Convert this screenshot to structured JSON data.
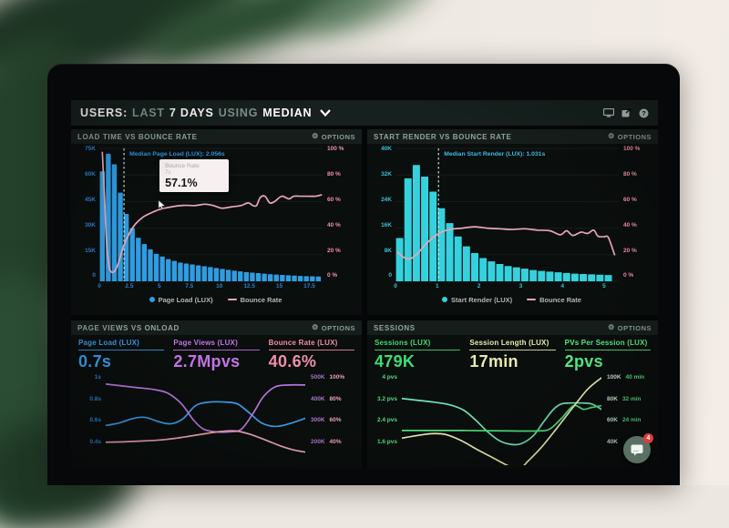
{
  "header": {
    "brand": "USERS:",
    "range_prefix": "LAST",
    "range": "7 DAYS",
    "using": "USING",
    "aggregation": "MEDIAN",
    "icons": [
      "display-icon",
      "share-icon",
      "help-icon"
    ]
  },
  "chat": {
    "badge": "4"
  },
  "colors": {
    "blue": "#2f9de3",
    "cyan": "#35d2de",
    "pink_line": "#e9a6b8",
    "pink_label": "#ef8fa8",
    "purple": "#b873d9",
    "green": "#3fdd74",
    "pale_yellow": "#e9ecad",
    "panel_bg": "#0a0e0d",
    "header_bg": "#17201e"
  },
  "chart_data": [
    {
      "id": "load-time-vs-bounce-rate",
      "type": "histogram-line",
      "title": "LOAD TIME VS BOUNCE RATE",
      "options_label": "OPTIONS",
      "left_ticks": [
        "75K",
        "60K",
        "45K",
        "30K",
        "15K",
        "0"
      ],
      "right_ticks": [
        "100 %",
        "80 %",
        "60 %",
        "40 %",
        "20 %",
        "0 %"
      ],
      "left_color": "#2e7fd0",
      "right_color": "#ef8fa8",
      "ylim_left": [
        0,
        75
      ],
      "ylim_right": [
        0,
        100
      ],
      "xlim": [
        0,
        18.6
      ],
      "x_ticks": [
        0,
        2.5,
        5,
        7.5,
        10,
        12.5,
        15,
        17.5
      ],
      "x_tick_labels": [
        "0",
        "2.5",
        "5",
        "7.5",
        "10",
        "12.5",
        "15",
        "17.5"
      ],
      "bar_series": {
        "name": "Page Load (LUX)",
        "color": "#2f9de3",
        "bin_start": 0,
        "bin_width": 0.5,
        "values": [
          62,
          72,
          66,
          50,
          38,
          30,
          24.5,
          21,
          18,
          15.5,
          14,
          12.5,
          11.5,
          10.5,
          10,
          9.5,
          9,
          8.5,
          8,
          7.5,
          7,
          6.5,
          6,
          5.6,
          5.2,
          4.9,
          4.6,
          4.3,
          4,
          3.8,
          3.6,
          3.4,
          3.2,
          3,
          2.9,
          2.8,
          2.7
        ]
      },
      "line_series": {
        "name": "Bounce Rate",
        "color": "#e9a6b8",
        "points": [
          [
            0.25,
            97
          ],
          [
            0.45,
            60
          ],
          [
            0.6,
            30
          ],
          [
            0.8,
            12
          ],
          [
            1.0,
            7
          ],
          [
            1.3,
            8
          ],
          [
            1.6,
            14
          ],
          [
            2.0,
            26
          ],
          [
            2.5,
            36
          ],
          [
            3.0,
            43
          ],
          [
            3.6,
            48
          ],
          [
            4.2,
            51
          ],
          [
            5.0,
            54
          ],
          [
            6.0,
            56
          ],
          [
            7.0,
            57.1
          ],
          [
            8.0,
            57
          ],
          [
            8.8,
            58
          ],
          [
            9.5,
            57
          ],
          [
            10.2,
            55
          ],
          [
            11.0,
            56
          ],
          [
            11.8,
            57
          ],
          [
            12.4,
            59
          ],
          [
            12.8,
            57
          ],
          [
            13.1,
            57
          ],
          [
            13.4,
            63
          ],
          [
            13.8,
            64
          ],
          [
            14.2,
            59
          ],
          [
            14.6,
            60
          ],
          [
            15.2,
            64
          ],
          [
            15.8,
            62
          ],
          [
            16.2,
            64
          ],
          [
            16.8,
            64
          ],
          [
            17.4,
            64
          ],
          [
            18.0,
            64
          ],
          [
            18.5,
            65
          ]
        ]
      },
      "median_annotation": {
        "label": "Median Page Load (LUX): 2.056s",
        "x": 2.056,
        "color": "#2f94e0"
      },
      "tooltip": {
        "title": "Bounce Rate",
        "subtitle": "7s",
        "value": "57.1%"
      },
      "legend": [
        {
          "label": "Page Load (LUX)",
          "marker": "dot",
          "color": "#2f9de3"
        },
        {
          "label": "Bounce Rate",
          "marker": "line",
          "color": "#e9a6b8"
        }
      ]
    },
    {
      "id": "start-render-vs-bounce-rate",
      "type": "histogram-line",
      "title": "START RENDER VS BOUNCE RATE",
      "options_label": "OPTIONS",
      "left_ticks": [
        "40K",
        "32K",
        "24K",
        "16K",
        "8K",
        "0"
      ],
      "right_ticks": [
        "100 %",
        "80 %",
        "60 %",
        "40 %",
        "20 %",
        "0 %"
      ],
      "left_color": "#36c0cf",
      "right_color": "#ef8fa8",
      "ylim_left": [
        0,
        40
      ],
      "ylim_right": [
        0,
        100
      ],
      "xlim": [
        0,
        5.35
      ],
      "x_ticks": [
        0,
        1,
        2,
        3,
        4,
        5
      ],
      "x_tick_labels": [
        "0",
        "1",
        "2",
        "3",
        "4",
        "5"
      ],
      "bar_series": {
        "name": "Start Render (LUX)",
        "color": "#35d2de",
        "bin_start": 0,
        "bin_width": 0.2,
        "values": [
          13,
          31,
          35,
          31.5,
          27,
          22,
          17.5,
          13.5,
          10.5,
          8.5,
          7,
          6,
          5.2,
          4.6,
          4.2,
          3.8,
          3.4,
          3.1,
          2.9,
          2.7,
          2.5,
          2.3,
          2.2,
          2.1,
          2.0,
          1.9
        ]
      },
      "line_series": {
        "name": "Bounce Rate",
        "color": "#e9a6b8",
        "points": [
          [
            0.05,
            22
          ],
          [
            0.2,
            18
          ],
          [
            0.35,
            17
          ],
          [
            0.5,
            20
          ],
          [
            0.7,
            27
          ],
          [
            0.9,
            33
          ],
          [
            1.1,
            37
          ],
          [
            1.3,
            39
          ],
          [
            1.6,
            40
          ],
          [
            1.9,
            41
          ],
          [
            2.2,
            40
          ],
          [
            2.5,
            39.5
          ],
          [
            2.8,
            39
          ],
          [
            3.1,
            39.5
          ],
          [
            3.4,
            38.5
          ],
          [
            3.7,
            38
          ],
          [
            3.95,
            35
          ],
          [
            4.1,
            38
          ],
          [
            4.25,
            34.5
          ],
          [
            4.45,
            37
          ],
          [
            4.6,
            36
          ],
          [
            4.75,
            38.5
          ],
          [
            4.85,
            34
          ],
          [
            5.0,
            33.5
          ],
          [
            5.1,
            33
          ],
          [
            5.25,
            20
          ]
        ]
      },
      "median_annotation": {
        "label": "Median Start Render (LUX): 1.031s",
        "x": 1.031,
        "color": "#3fb9e6"
      },
      "tooltip": null,
      "legend": [
        {
          "label": "Start Render (LUX)",
          "marker": "dot",
          "color": "#35d2de"
        },
        {
          "label": "Bounce Rate",
          "marker": "line",
          "color": "#e9a6b8"
        }
      ]
    },
    {
      "id": "page-views-vs-onload",
      "type": "line",
      "title": "PAGE VIEWS VS ONLOAD",
      "options_label": "OPTIONS",
      "metrics": [
        {
          "label": "Page Load (LUX)",
          "value": "0.7s",
          "color": "#3b9ce8"
        },
        {
          "label": "Page Views (LUX)",
          "value": "2.7Mpvs",
          "color": "#c473e8"
        },
        {
          "label": "Bounce Rate (LUX)",
          "value": "40.6%",
          "color": "#f08fa8"
        }
      ],
      "left_ticks": [
        "1s",
        "0.8s",
        "0.6s",
        "0.4s"
      ],
      "left_color": "#2e7fd0",
      "right_ticks": [
        [
          "500K",
          "100%"
        ],
        [
          "400K",
          "80%"
        ],
        [
          "300K",
          "60%"
        ],
        [
          "200K",
          "40%"
        ]
      ],
      "right_colors": [
        "#a877c9",
        "#e8a0b4"
      ],
      "series": [
        {
          "name": "Page Load (LUX)",
          "color": "#3b9ce8",
          "points": [
            [
              0,
              0.44
            ],
            [
              0.07,
              0.47
            ],
            [
              0.14,
              0.52
            ],
            [
              0.2,
              0.53
            ],
            [
              0.27,
              0.48
            ],
            [
              0.33,
              0.46
            ],
            [
              0.39,
              0.52
            ],
            [
              0.45,
              0.66
            ],
            [
              0.52,
              0.7
            ],
            [
              0.6,
              0.7
            ],
            [
              0.66,
              0.68
            ],
            [
              0.72,
              0.58
            ],
            [
              0.78,
              0.47
            ],
            [
              0.85,
              0.43
            ],
            [
              0.92,
              0.46
            ],
            [
              1,
              0.52
            ]
          ]
        },
        {
          "name": "Page Views (LUX)",
          "color": "#b873d9",
          "points": [
            [
              0,
              0.9
            ],
            [
              0.08,
              0.88
            ],
            [
              0.16,
              0.86
            ],
            [
              0.24,
              0.84
            ],
            [
              0.31,
              0.8
            ],
            [
              0.38,
              0.68
            ],
            [
              0.44,
              0.5
            ],
            [
              0.49,
              0.4
            ],
            [
              0.55,
              0.37
            ],
            [
              0.62,
              0.37
            ],
            [
              0.68,
              0.4
            ],
            [
              0.74,
              0.58
            ],
            [
              0.79,
              0.76
            ],
            [
              0.85,
              0.87
            ],
            [
              0.92,
              0.89
            ],
            [
              1,
              0.89
            ]
          ]
        },
        {
          "name": "Bounce Rate (LUX)",
          "color": "#e9a0b2",
          "points": [
            [
              0,
              0.255
            ],
            [
              0.1,
              0.26
            ],
            [
              0.2,
              0.27
            ],
            [
              0.3,
              0.285
            ],
            [
              0.4,
              0.315
            ],
            [
              0.5,
              0.35
            ],
            [
              0.58,
              0.375
            ],
            [
              0.65,
              0.38
            ],
            [
              0.72,
              0.345
            ],
            [
              0.8,
              0.28
            ],
            [
              0.88,
              0.21
            ],
            [
              0.94,
              0.17
            ],
            [
              1,
              0.145
            ]
          ]
        }
      ]
    },
    {
      "id": "sessions",
      "type": "line",
      "title": "SESSIONS",
      "options_label": "OPTIONS",
      "metrics": [
        {
          "label": "Sessions (LUX)",
          "value": "479K",
          "color": "#3fdd74"
        },
        {
          "label": "Session Length (LUX)",
          "value": "17min",
          "color": "#e9ecad"
        },
        {
          "label": "PVs Per Session (LUX)",
          "value": "2pvs",
          "color": "#55ef84"
        }
      ],
      "left_ticks": [
        "4 pvs",
        "3.2 pvs",
        "2.4 pvs",
        "1.6 pvs"
      ],
      "left_color": "#4fdc82",
      "right_ticks": [
        [
          "100K",
          "40 min"
        ],
        [
          "80K",
          "32 min"
        ],
        [
          "60K",
          "24 min"
        ],
        [
          "40K",
          ""
        ]
      ],
      "right_colors": [
        "#cfe0d2",
        "#52d87c"
      ],
      "series": [
        {
          "name": "Sessions (LUX)",
          "color": "#6fe4b4",
          "points": [
            [
              0,
              0.74
            ],
            [
              0.08,
              0.72
            ],
            [
              0.16,
              0.7
            ],
            [
              0.24,
              0.67
            ],
            [
              0.31,
              0.61
            ],
            [
              0.37,
              0.5
            ],
            [
              0.43,
              0.37
            ],
            [
              0.49,
              0.27
            ],
            [
              0.55,
              0.23
            ],
            [
              0.6,
              0.24
            ],
            [
              0.66,
              0.33
            ],
            [
              0.71,
              0.48
            ],
            [
              0.76,
              0.62
            ],
            [
              0.8,
              0.68
            ],
            [
              0.85,
              0.69
            ],
            [
              0.9,
              0.69
            ],
            [
              0.95,
              0.68
            ],
            [
              1,
              0.62
            ]
          ]
        },
        {
          "name": "PVs Per Session (LUX)",
          "color": "#4fe07e",
          "points": [
            [
              0,
              0.385
            ],
            [
              0.3,
              0.385
            ],
            [
              0.55,
              0.38
            ],
            [
              0.68,
              0.38
            ],
            [
              0.74,
              0.4
            ],
            [
              0.8,
              0.52
            ],
            [
              0.86,
              0.66
            ],
            [
              0.91,
              0.62
            ],
            [
              0.95,
              0.64
            ],
            [
              1,
              0.66
            ]
          ]
        },
        {
          "name": "Session Length (LUX)",
          "color": "#e9ecad",
          "points": [
            [
              0,
              0.3
            ],
            [
              0.08,
              0.33
            ],
            [
              0.15,
              0.35
            ],
            [
              0.22,
              0.34
            ],
            [
              0.3,
              0.27
            ],
            [
              0.38,
              0.17
            ],
            [
              0.45,
              0.09
            ],
            [
              0.5,
              0.03
            ],
            [
              0.55,
              -0.02
            ],
            [
              0.6,
              -0.02
            ],
            [
              0.63,
              0.04
            ],
            [
              0.7,
              0.2
            ],
            [
              0.78,
              0.42
            ],
            [
              0.85,
              0.62
            ],
            [
              0.93,
              0.84
            ],
            [
              1,
              0.97
            ]
          ]
        }
      ]
    }
  ]
}
